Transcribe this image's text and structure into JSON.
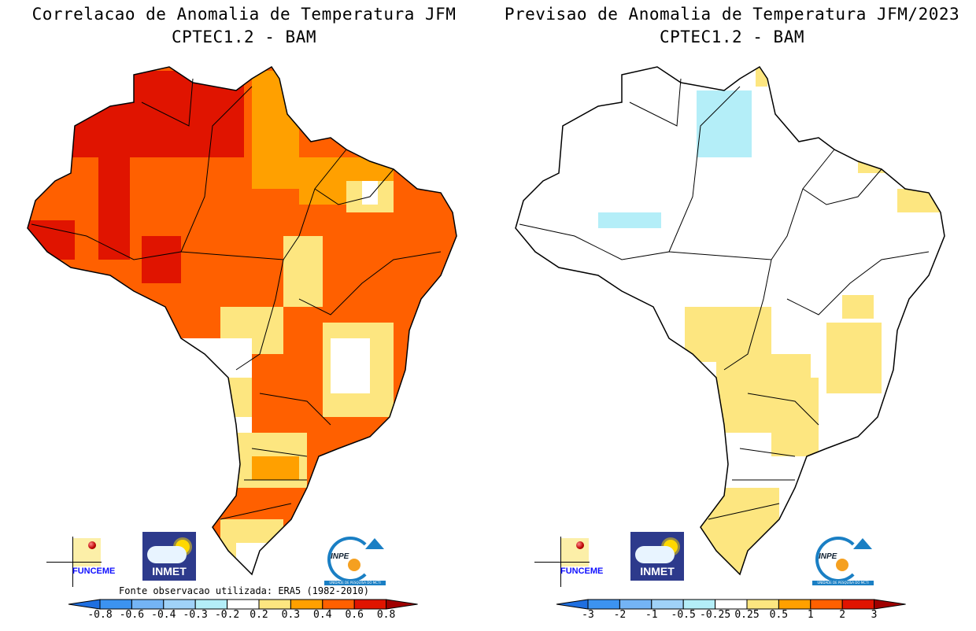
{
  "left_panel": {
    "title_line1": "Correlacao de Anomalia de Temperatura JFM",
    "title_line2": "CPTEC1.2 - BAM",
    "source_note": "Fonte observacao utilizada: ERA5 (1982-2010)",
    "colorbar": {
      "ticks": [
        "-0.8",
        "-0.6",
        "-0.4",
        "-0.3",
        "-0.2",
        "0.2",
        "0.3",
        "0.4",
        "0.6",
        "0.8"
      ],
      "colors": [
        "#1f6fe0",
        "#3c93f0",
        "#74b4f5",
        "#a0d2f8",
        "#b4eef8",
        "#ffffff",
        "#fde680",
        "#ffa000",
        "#ff6000",
        "#e01400",
        "#a00000"
      ]
    }
  },
  "right_panel": {
    "title_line1": "Previsao de Anomalia de Temperatura JFM/2023",
    "title_line2": "CPTEC1.2 - BAM",
    "colorbar": {
      "ticks": [
        "-3",
        "-2",
        "-1",
        "-0.5",
        "-0.25",
        "0.25",
        "0.5",
        "1",
        "2",
        "3"
      ],
      "colors": [
        "#1f6fe0",
        "#3c93f0",
        "#74b4f5",
        "#a0d2f8",
        "#b4eef8",
        "#ffffff",
        "#fde680",
        "#ffa000",
        "#ff6000",
        "#e01400",
        "#a00000"
      ]
    }
  },
  "logos": {
    "funceme": "FUNCEME",
    "inmet": "INMET",
    "inpe": "INPE",
    "inpe_sub": "UNIDADE DE PESQUISA DO MCTI"
  }
}
